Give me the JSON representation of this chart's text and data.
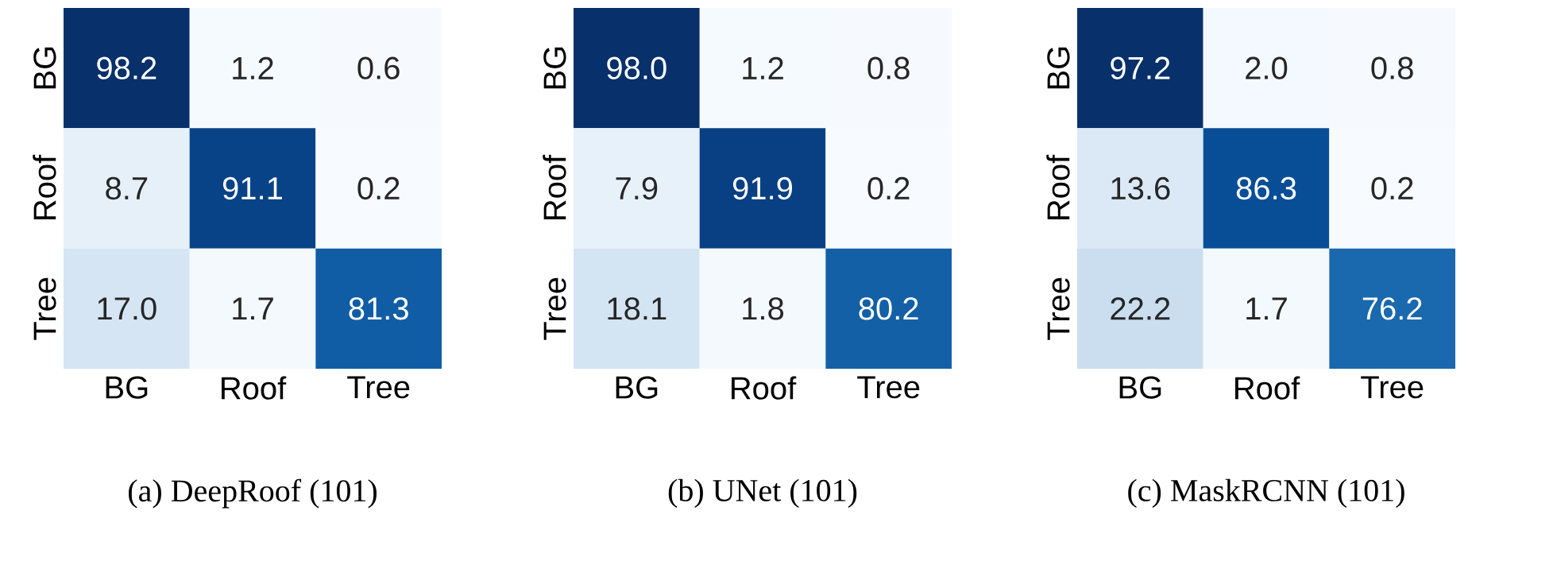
{
  "chart_data": [
    {
      "type": "heatmap",
      "title": "(a) DeepRoof (101)",
      "categories": [
        "BG",
        "Roof",
        "Tree"
      ],
      "y_categories": [
        "BG",
        "Roof",
        "Tree"
      ],
      "cells": [
        [
          98.2,
          1.2,
          0.6
        ],
        [
          8.7,
          91.1,
          0.2
        ],
        [
          17.0,
          1.7,
          81.3
        ]
      ],
      "cell_labels": [
        [
          "98.2",
          "1.2",
          "0.6"
        ],
        [
          "8.7",
          "91.1",
          "0.2"
        ],
        [
          "17.0",
          "1.7",
          "81.3"
        ]
      ]
    },
    {
      "type": "heatmap",
      "title": "(b) UNet (101)",
      "categories": [
        "BG",
        "Roof",
        "Tree"
      ],
      "y_categories": [
        "BG",
        "Roof",
        "Tree"
      ],
      "cells": [
        [
          98.0,
          1.2,
          0.8
        ],
        [
          7.9,
          91.9,
          0.2
        ],
        [
          18.1,
          1.8,
          80.2
        ]
      ],
      "cell_labels": [
        [
          "98.0",
          "1.2",
          "0.8"
        ],
        [
          "7.9",
          "91.9",
          "0.2"
        ],
        [
          "18.1",
          "1.8",
          "80.2"
        ]
      ]
    },
    {
      "type": "heatmap",
      "title": "(c) MaskRCNN (101)",
      "categories": [
        "BG",
        "Roof",
        "Tree"
      ],
      "y_categories": [
        "BG",
        "Roof",
        "Tree"
      ],
      "cells": [
        [
          97.2,
          2.0,
          0.8
        ],
        [
          13.6,
          86.3,
          0.2
        ],
        [
          22.2,
          1.7,
          76.2
        ]
      ],
      "cell_labels": [
        [
          "97.2",
          "2.0",
          "0.8"
        ],
        [
          "13.6",
          "86.3",
          "0.2"
        ],
        [
          "22.2",
          "1.7",
          "76.2"
        ]
      ]
    }
  ]
}
